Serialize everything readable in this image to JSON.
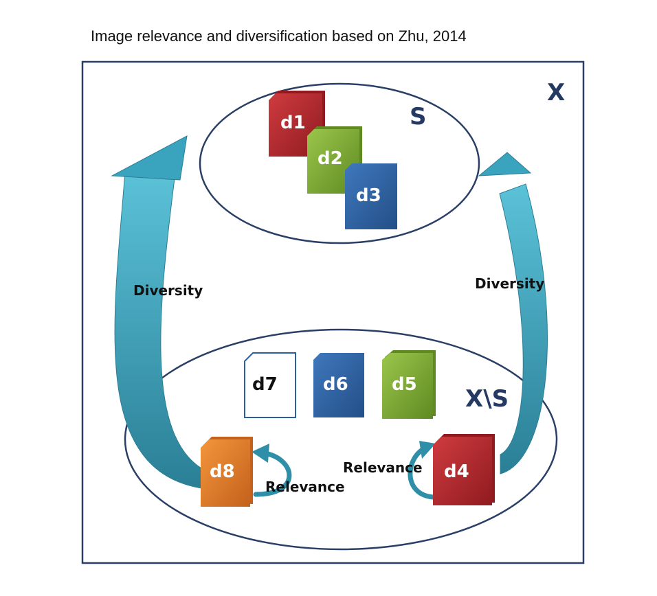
{
  "caption": "Image relevance and diversification based on Zhu, 2014",
  "sets": {
    "universe_label": "X",
    "selected_label": "S",
    "remaining_label": "X\\S"
  },
  "documents": [
    {
      "id": "d1",
      "label": "d1",
      "set": "S",
      "color": "#b3262b"
    },
    {
      "id": "d2",
      "label": "d2",
      "set": "S",
      "color": "#7aa832"
    },
    {
      "id": "d3",
      "label": "d3",
      "set": "S",
      "color": "#2c5f9e"
    },
    {
      "id": "d4",
      "label": "d4",
      "set": "X\\S",
      "color": "#b3262b"
    },
    {
      "id": "d5",
      "label": "d5",
      "set": "X\\S",
      "color": "#7aa832"
    },
    {
      "id": "d6",
      "label": "d6",
      "set": "X\\S",
      "color": "#2c5f9e"
    },
    {
      "id": "d7",
      "label": "d7",
      "set": "X\\S",
      "color": "#ffffff"
    },
    {
      "id": "d8",
      "label": "d8",
      "set": "X\\S",
      "color": "#e57a2b"
    }
  ],
  "edges": {
    "diversity_left": "Diversity",
    "diversity_right": "Diversity",
    "relevance_left": "Relevance",
    "relevance_right": "Relevance"
  },
  "colors": {
    "border": "#2a3f66",
    "arrow": "#3a9ab3",
    "set_label": "#243a63"
  }
}
